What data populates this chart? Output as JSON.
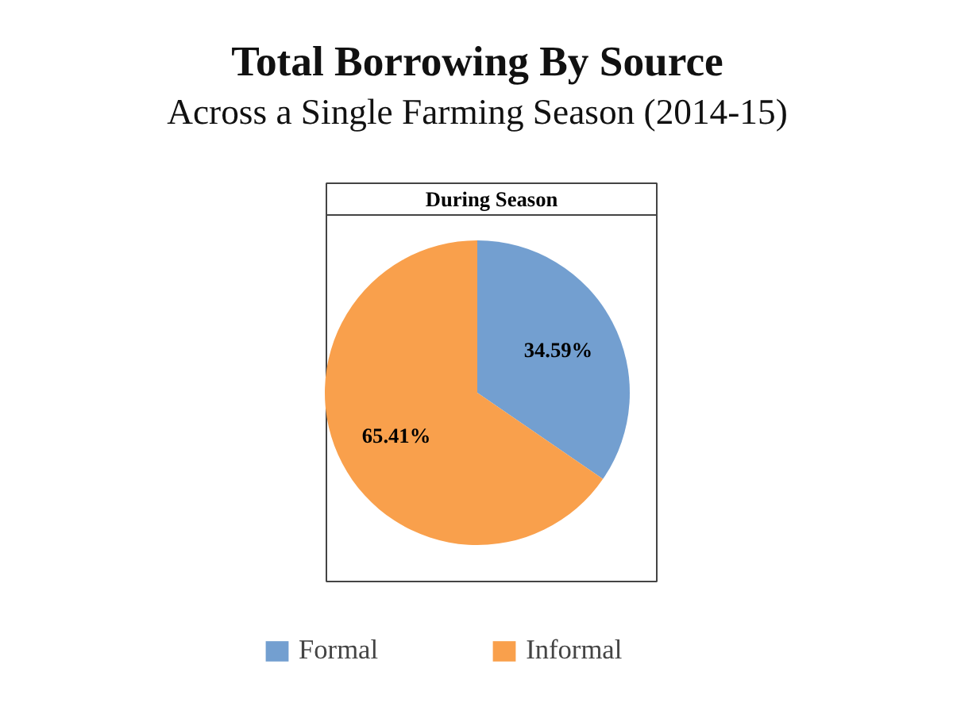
{
  "chart_data": {
    "type": "pie",
    "title": "Total Borrowing By Source",
    "subtitle": "Across a Single Farming Season (2014-15)",
    "annotations": [
      "During Season"
    ],
    "categories": [
      "Formal",
      "Informal"
    ],
    "values": [
      34.59,
      65.41
    ],
    "colors": [
      "#739fd0",
      "#f9a04c"
    ],
    "value_labels": [
      "34.59%",
      "65.41%"
    ],
    "legend": "bottom"
  }
}
